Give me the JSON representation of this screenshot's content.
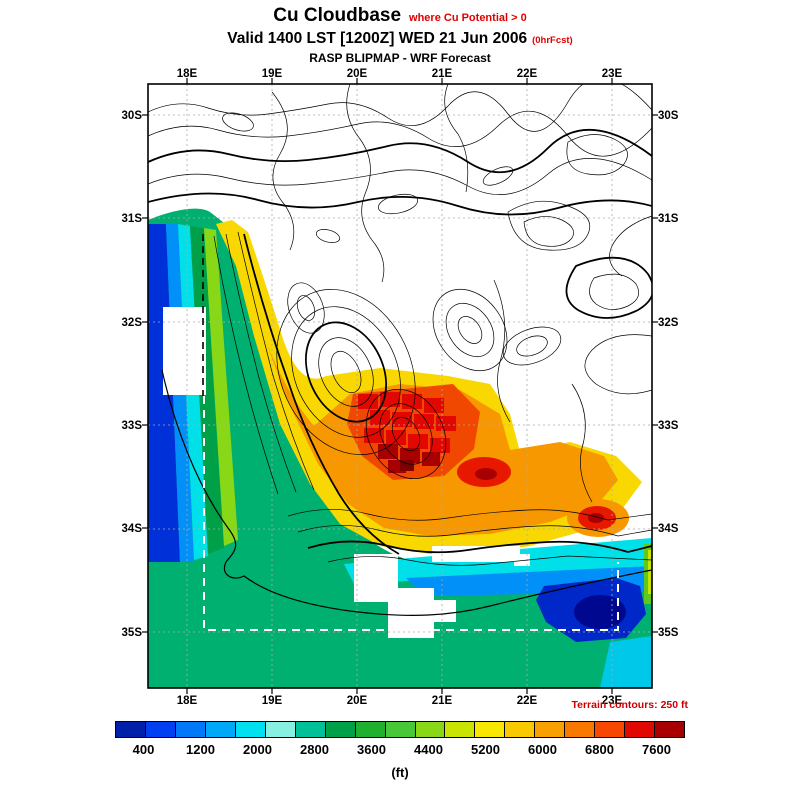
{
  "header": {
    "title": "Cu Cloudbase",
    "title_note": "where Cu Potential > 0",
    "valid": "Valid 1400 LST [1200Z] WED 21 Jun 2006",
    "valid_note": "(0hrFcst)",
    "subtitle": "RASP BLIPMAP - WRF Forecast"
  },
  "map": {
    "x_ticks": [
      "18E",
      "19E",
      "20E",
      "21E",
      "22E",
      "23E"
    ],
    "y_ticks": [
      "30S",
      "31S",
      "32S",
      "33S",
      "34S",
      "35S"
    ],
    "terrain_note": "Terrain contours: 250 ft"
  },
  "colorbar": {
    "unit": "(ft)",
    "labels": [
      "400",
      "1200",
      "2000",
      "2800",
      "3600",
      "4400",
      "5200",
      "6000",
      "6800",
      "7600"
    ],
    "colors": [
      "#0020a8",
      "#0040f0",
      "#0078f8",
      "#00a8f8",
      "#00e0f0",
      "#88f0e0",
      "#00c098",
      "#00a048",
      "#20b030",
      "#48c838",
      "#88d818",
      "#c8e400",
      "#f8e800",
      "#f8c800",
      "#f8a000",
      "#f87800",
      "#f84800",
      "#e00800",
      "#a80000"
    ]
  },
  "chart_data": {
    "type": "heatmap",
    "title": "Cu Cloudbase where Cu Potential > 0",
    "valid_time": "Valid 1400 LST [1200Z] WED 21 Jun 2006 (0hrFcst)",
    "source": "RASP BLIPMAP - WRF Forecast",
    "x_axis": {
      "label": "longitude",
      "ticks": [
        "18E",
        "19E",
        "20E",
        "21E",
        "22E",
        "23E"
      ]
    },
    "y_axis": {
      "label": "latitude",
      "ticks": [
        "30S",
        "31S",
        "32S",
        "33S",
        "34S",
        "35S"
      ]
    },
    "value_unit": "ft",
    "value_scale": [
      400,
      1200,
      2000,
      2800,
      3600,
      4400,
      5200,
      6000,
      6800,
      7600
    ],
    "terrain_contour_interval_ft": 250,
    "legend_position": "bottom",
    "grid": true,
    "features": [
      {
        "region": "west coast strip (~18E, 31S-34S)",
        "cloudbase_ft": "400-1600",
        "color": "dark blue / blue"
      },
      {
        "region": "western escarpment bands (18.3E-19E)",
        "cloudbase_ft": "1600-4400",
        "color": "cyan-green-yellow gradient"
      },
      {
        "region": "central interior mountains (19.5E-21.5E, 32.8S-33.7S)",
        "cloudbase_ft": "5200-7600",
        "color": "orange-red with dark red cores"
      },
      {
        "region": "isolated high cell (~22.3E, 33.9S)",
        "cloudbase_ft": "6000-7600",
        "color": "red core ringed by orange/yellow"
      },
      {
        "region": "southwest ocean (18E-20E, 34S-35S)",
        "cloudbase_ft": "2000-2800",
        "color": "green/teal"
      },
      {
        "region": "south coast band (20E-23E, ~34.5S)",
        "cloudbase_ft": "400-2000",
        "color": "cyan-blue with dark blue pocket"
      },
      {
        "region": "northeast interior (20E-23E, 30S-32.5S)",
        "cloudbase_ft": "uncolored (Cu Potential <= 0)",
        "color": "white, terrain contours only"
      },
      {
        "region": "small uncolored holes (west coast gap, south coast gaps)",
        "cloudbase_ft": "uncolored",
        "color": "white"
      }
    ]
  }
}
